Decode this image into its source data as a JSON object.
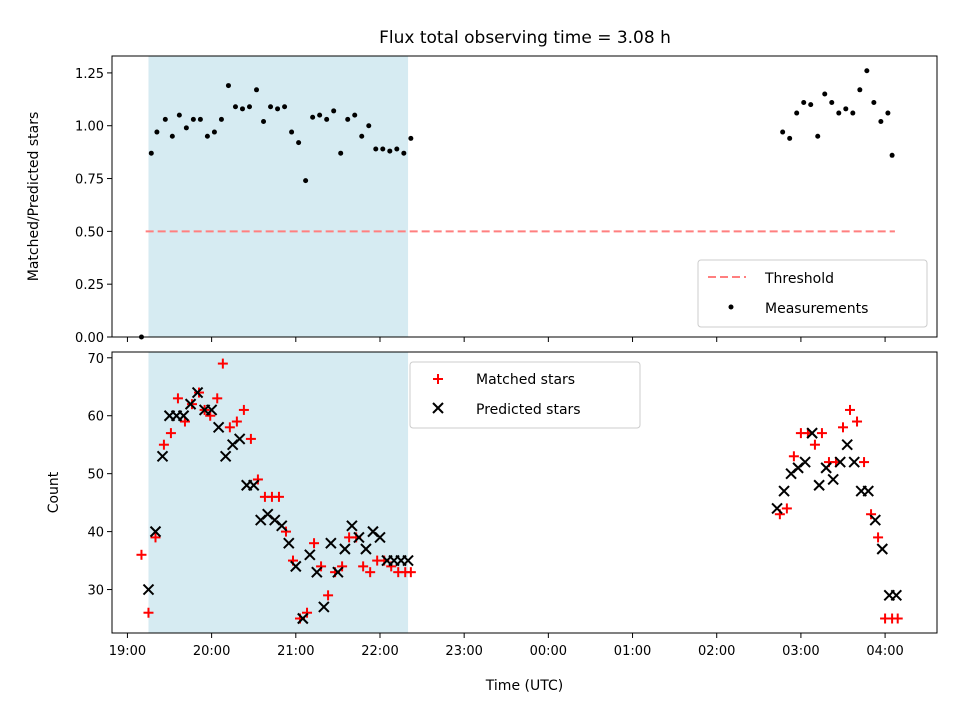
{
  "chart_data": [
    {
      "type": "scatter",
      "title": "Flux total observing time = 3.08 h",
      "xlabel": "",
      "ylabel": "Matched/Predicted stars",
      "ylim": [
        0,
        1.33
      ],
      "yticks": [
        "0.00",
        "0.25",
        "0.50",
        "0.75",
        "1.00",
        "1.25"
      ],
      "shaded_region": {
        "x_start": "19:15",
        "x_end": "22:20",
        "color": "#add8e6"
      },
      "threshold": {
        "name": "Threshold",
        "y": 0.5,
        "x_start": "19:13",
        "x_end": "04:07",
        "color": "#ff7f7f",
        "style": "dashed"
      },
      "series": [
        {
          "name": "Measurements",
          "marker": "dot",
          "color": "#000000",
          "x": [
            "19:10",
            "19:17",
            "19:21",
            "19:27",
            "19:32",
            "19:37",
            "19:42",
            "19:47",
            "19:52",
            "19:57",
            "20:02",
            "20:07",
            "20:12",
            "20:17",
            "20:22",
            "20:27",
            "20:32",
            "20:37",
            "20:42",
            "20:47",
            "20:52",
            "20:57",
            "21:02",
            "21:07",
            "21:12",
            "21:17",
            "21:22",
            "21:27",
            "21:32",
            "21:37",
            "21:42",
            "21:47",
            "21:52",
            "21:57",
            "22:02",
            "22:07",
            "22:12",
            "22:17",
            "22:22",
            "02:47",
            "02:52",
            "02:57",
            "03:02",
            "03:07",
            "03:12",
            "03:17",
            "03:22",
            "03:27",
            "03:32",
            "03:37",
            "03:42",
            "03:47",
            "03:52",
            "03:57",
            "04:02",
            "04:05"
          ],
          "y": [
            0.0,
            0.87,
            0.97,
            1.03,
            0.95,
            1.05,
            0.99,
            1.03,
            1.03,
            0.95,
            0.97,
            1.03,
            1.19,
            1.09,
            1.08,
            1.09,
            1.17,
            1.02,
            1.09,
            1.08,
            1.09,
            0.97,
            0.92,
            0.74,
            1.04,
            1.05,
            1.03,
            1.07,
            0.87,
            1.03,
            1.05,
            0.95,
            1.0,
            0.89,
            0.89,
            0.88,
            0.89,
            0.87,
            0.94,
            0.97,
            0.94,
            1.06,
            1.11,
            1.1,
            0.95,
            1.15,
            1.11,
            1.06,
            1.08,
            1.06,
            1.17,
            1.26,
            1.11,
            1.02,
            1.06,
            0.86
          ]
        }
      ],
      "legend": {
        "position": "lower-right",
        "entries": [
          "Threshold",
          "Measurements"
        ]
      }
    },
    {
      "type": "scatter",
      "title": "",
      "xlabel": "Time (UTC)",
      "ylabel": "Count",
      "ylim": [
        22.5,
        71
      ],
      "yticks": [
        "30",
        "40",
        "50",
        "60",
        "70"
      ],
      "xticks": [
        "19:00",
        "20:00",
        "21:00",
        "22:00",
        "23:00",
        "00:00",
        "01:00",
        "02:00",
        "03:00",
        "04:00"
      ],
      "xlim": [
        "18:49",
        "04:37"
      ],
      "shaded_region": {
        "x_start": "19:15",
        "x_end": "22:20",
        "color": "#add8e6"
      },
      "series": [
        {
          "name": "Matched stars",
          "marker": "plus",
          "color": "#ff0000",
          "x": [
            "19:10",
            "19:15",
            "19:20",
            "19:26",
            "19:31",
            "19:36",
            "19:41",
            "19:46",
            "19:51",
            "19:55",
            "19:59",
            "20:04",
            "20:08",
            "20:13",
            "20:18",
            "20:23",
            "20:28",
            "20:33",
            "20:38",
            "20:43",
            "20:48",
            "20:53",
            "20:58",
            "21:03",
            "21:08",
            "21:13",
            "21:18",
            "21:23",
            "21:28",
            "21:33",
            "21:38",
            "21:43",
            "21:48",
            "21:53",
            "21:58",
            "22:03",
            "22:08",
            "22:13",
            "22:18",
            "22:22",
            "02:45",
            "02:50",
            "02:55",
            "03:00",
            "03:05",
            "03:10",
            "03:15",
            "03:20",
            "03:25",
            "03:30",
            "03:35",
            "03:40",
            "03:45",
            "03:50",
            "03:55",
            "04:00",
            "04:05",
            "04:09"
          ],
          "y": [
            36,
            26,
            39,
            55,
            57,
            63,
            59,
            62,
            64,
            61,
            60,
            63,
            69,
            58,
            59,
            61,
            56,
            49,
            46,
            46,
            46,
            40,
            35,
            25,
            26,
            38,
            34,
            29,
            33,
            34,
            39,
            39,
            34,
            33,
            35,
            35,
            34,
            33,
            33,
            33,
            43,
            44,
            53,
            57,
            57,
            55,
            57,
            52,
            52,
            58,
            61,
            59,
            52,
            43,
            39,
            25,
            25,
            25
          ]
        },
        {
          "name": "Predicted stars",
          "marker": "x",
          "color": "#000000",
          "x": [
            "19:15",
            "19:20",
            "19:25",
            "19:30",
            "19:35",
            "19:40",
            "19:45",
            "19:50",
            "19:55",
            "20:00",
            "20:05",
            "20:10",
            "20:15",
            "20:20",
            "20:25",
            "20:30",
            "20:35",
            "20:40",
            "20:45",
            "20:50",
            "20:55",
            "21:00",
            "21:05",
            "21:10",
            "21:15",
            "21:20",
            "21:25",
            "21:30",
            "21:35",
            "21:40",
            "21:45",
            "21:50",
            "21:55",
            "22:00",
            "22:05",
            "22:10",
            "22:15",
            "22:20",
            "02:43",
            "02:48",
            "02:53",
            "02:58",
            "03:03",
            "03:08",
            "03:13",
            "03:18",
            "03:23",
            "03:28",
            "03:33",
            "03:38",
            "03:43",
            "03:48",
            "03:53",
            "03:58",
            "04:03",
            "04:08"
          ],
          "y": [
            30,
            40,
            53,
            60,
            60,
            60,
            62,
            64,
            61,
            61,
            58,
            53,
            55,
            56,
            48,
            48,
            42,
            43,
            42,
            41,
            38,
            34,
            25,
            36,
            33,
            27,
            38,
            33,
            37,
            41,
            39,
            37,
            40,
            39,
            35,
            35,
            35,
            35,
            44,
            47,
            50,
            51,
            52,
            57,
            48,
            51,
            49,
            52,
            55,
            52,
            47,
            47,
            42,
            37,
            29,
            29
          ]
        }
      ],
      "legend": {
        "position": "upper-center",
        "entries": [
          "Matched stars",
          "Predicted stars"
        ]
      }
    }
  ]
}
